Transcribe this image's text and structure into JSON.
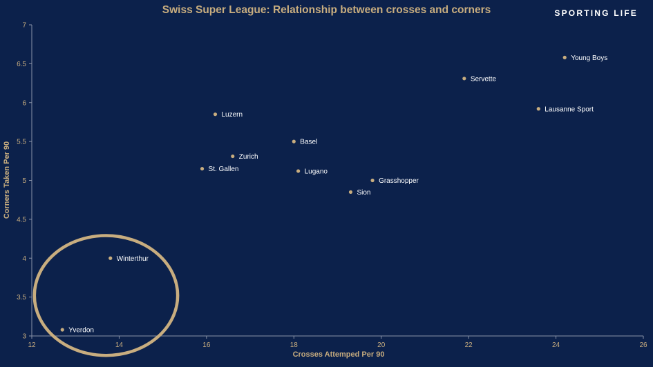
{
  "brand": "SPORTING LIFE",
  "chart_data": {
    "type": "scatter",
    "title": "Swiss Super League: Relationship between crosses and corners",
    "xlabel": "Crosses Attemped Per 90",
    "ylabel": "Corners Taken Per 90",
    "xlim": [
      12,
      26
    ],
    "ylim": [
      3,
      7
    ],
    "xticks": [
      12,
      14,
      16,
      18,
      20,
      22,
      24,
      26
    ],
    "yticks": [
      3,
      3.5,
      4,
      4.5,
      5,
      5.5,
      6,
      6.5,
      7
    ],
    "grid": false,
    "points": [
      {
        "team": "Young Boys",
        "x": 24.2,
        "y": 6.58
      },
      {
        "team": "Servette",
        "x": 21.9,
        "y": 6.31
      },
      {
        "team": "Lausanne Sport",
        "x": 23.6,
        "y": 5.92
      },
      {
        "team": "Luzern",
        "x": 16.2,
        "y": 5.85
      },
      {
        "team": "Basel",
        "x": 18.0,
        "y": 5.5
      },
      {
        "team": "Zurich",
        "x": 16.6,
        "y": 5.31
      },
      {
        "team": "St. Gallen",
        "x": 15.9,
        "y": 5.15
      },
      {
        "team": "Lugano",
        "x": 18.1,
        "y": 5.12
      },
      {
        "team": "Grasshopper",
        "x": 19.8,
        "y": 5.0
      },
      {
        "team": "Sion",
        "x": 19.3,
        "y": 4.85
      },
      {
        "team": "Winterthur",
        "x": 13.8,
        "y": 4.0
      },
      {
        "team": "Yverdon",
        "x": 12.7,
        "y": 3.08
      }
    ],
    "annotation": {
      "type": "ellipse",
      "center_x": 13.7,
      "center_y": 3.52,
      "rx": 1.64,
      "ry": 0.77,
      "color": "#c8ad7f"
    }
  }
}
